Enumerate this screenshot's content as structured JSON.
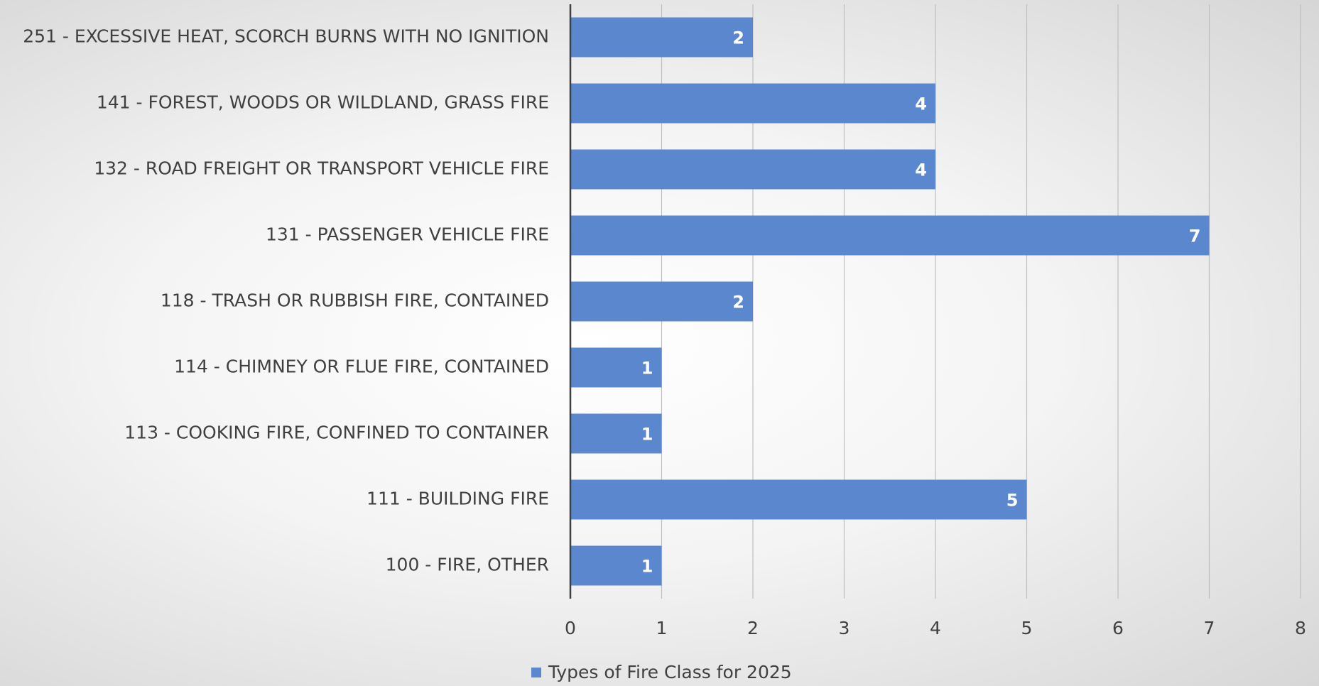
{
  "chart_data": {
    "type": "bar",
    "orientation": "horizontal",
    "categories": [
      "251 - EXCESSIVE HEAT, SCORCH BURNS WITH NO IGNITION",
      "141 - FOREST, WOODS OR WILDLAND, GRASS FIRE",
      "132 - ROAD FREIGHT OR TRANSPORT VEHICLE FIRE",
      "131 - PASSENGER VEHICLE FIRE",
      "118 - TRASH OR RUBBISH FIRE, CONTAINED",
      "114 - CHIMNEY OR FLUE FIRE, CONTAINED",
      "113 - COOKING FIRE, CONFINED TO CONTAINER",
      "111 - BUILDING FIRE",
      "100 - FIRE, OTHER"
    ],
    "series": [
      {
        "name": "Types of Fire Class for 2025",
        "color": "#5b87cf",
        "values": [
          2,
          4,
          4,
          7,
          2,
          1,
          1,
          5,
          1
        ]
      }
    ],
    "xlim": [
      0,
      8
    ],
    "xticks": [
      0,
      1,
      2,
      3,
      4,
      5,
      6,
      7,
      8
    ],
    "grid": true,
    "legend": "bottom"
  }
}
